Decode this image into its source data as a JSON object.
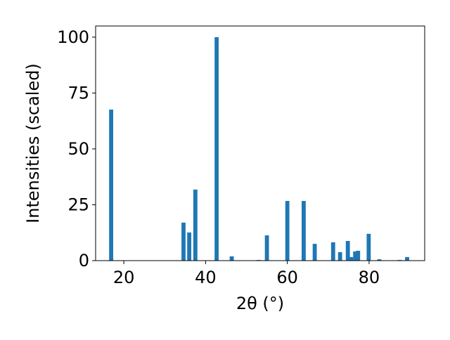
{
  "chart_data": {
    "type": "bar",
    "xlabel": "2θ (°)",
    "ylabel": "Intensities (scaled)",
    "x": [
      16.9,
      34.6,
      36.0,
      37.5,
      42.7,
      46.4,
      53.0,
      55.0,
      60.0,
      64.0,
      66.7,
      71.2,
      72.9,
      74.8,
      75.6,
      76.6,
      77.3,
      79.9,
      82.5,
      87.5,
      89.3
    ],
    "values": [
      67.6,
      17,
      12.6,
      31.8,
      100,
      1.9,
      0.3,
      11.3,
      26.7,
      26.7,
      7.5,
      8.2,
      3.8,
      8.8,
      1.6,
      4.1,
      4.4,
      12,
      0.6,
      0.3,
      1.6
    ],
    "color": "#1f77b4",
    "xlim": [
      13.1,
      93.6
    ],
    "xticks": [
      20,
      40,
      60,
      80
    ],
    "ylim": [
      0,
      105
    ],
    "yticks": [
      0,
      25,
      50,
      75,
      100
    ]
  }
}
